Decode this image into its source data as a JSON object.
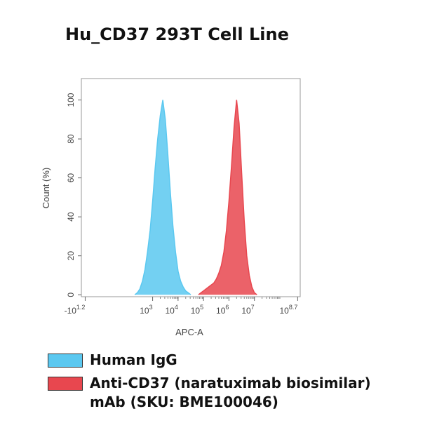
{
  "chart_data": {
    "type": "area",
    "title": "Hu_CD37 293T Cell Line",
    "x_label": "APC-A",
    "y_label": "Count (%)",
    "xlim": [
      0.2,
      8.8
    ],
    "ylim": [
      -1,
      111
    ],
    "xticks": [
      {
        "value": 0.35,
        "label": "-10",
        "power": "1.2"
      },
      {
        "value": 3,
        "label": "10",
        "power": "3"
      },
      {
        "value": 4,
        "label": "10",
        "power": "4"
      },
      {
        "value": 5,
        "label": "10",
        "power": "5"
      },
      {
        "value": 6,
        "label": "10",
        "power": "6"
      },
      {
        "value": 7,
        "label": "10",
        "power": "7"
      },
      {
        "value": 8.7,
        "label": "10",
        "power": "8.7"
      }
    ],
    "yticks": [
      0,
      20,
      40,
      60,
      80,
      100
    ],
    "series": [
      {
        "name": "Human IgG",
        "color": "#5bc8f0",
        "x": [
          2.3,
          2.4,
          2.5,
          2.6,
          2.7,
          2.8,
          2.9,
          3.0,
          3.1,
          3.2,
          3.3,
          3.4,
          3.5,
          3.6,
          3.7,
          3.8,
          3.9,
          4.0,
          4.1,
          4.2,
          4.3,
          4.4,
          4.5
        ],
        "values": [
          0,
          1,
          3,
          7,
          13,
          22,
          33,
          48,
          65,
          80,
          92,
          100,
          90,
          72,
          52,
          35,
          22,
          12,
          7,
          4,
          2,
          1,
          0
        ]
      },
      {
        "name": "Anti-CD37 (naratuximab biosimilar) mAb (SKU: BME100046)",
        "color": "#e8474f",
        "x": [
          4.8,
          4.9,
          5.0,
          5.1,
          5.2,
          5.3,
          5.4,
          5.5,
          5.6,
          5.7,
          5.8,
          5.9,
          6.0,
          6.1,
          6.2,
          6.3,
          6.4,
          6.5,
          6.6,
          6.7,
          6.8,
          6.9,
          7.0,
          7.1
        ],
        "values": [
          0,
          1,
          2,
          3,
          4,
          5,
          6,
          8,
          11,
          15,
          22,
          33,
          48,
          66,
          86,
          100,
          88,
          62,
          38,
          20,
          10,
          4,
          1,
          0
        ]
      }
    ]
  }
}
